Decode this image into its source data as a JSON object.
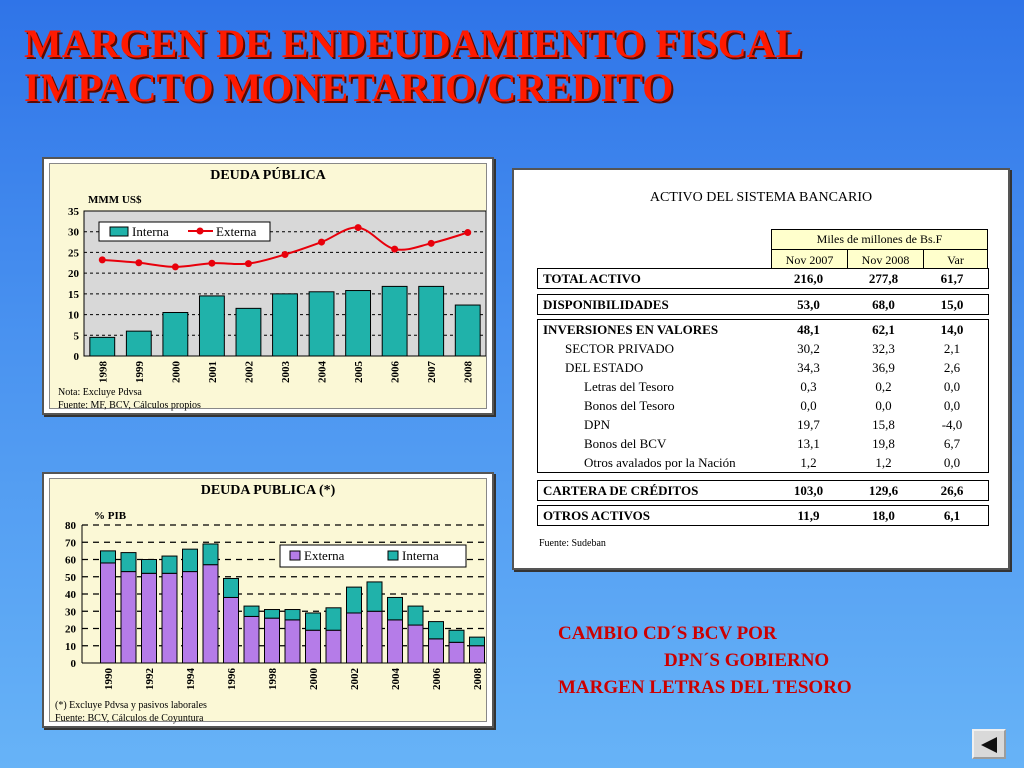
{
  "title_lines": [
    "MARGEN DE ENDEUDAMIENTO FISCAL",
    "IMPACTO MONETARIO/CREDITO"
  ],
  "chart1": {
    "title": "DEUDA PÚBLICA",
    "ylabel": "MMM US$",
    "notes": [
      "Nota: Excluye Pdvsa",
      "Fuente: MF, BCV, Cálculos propios"
    ]
  },
  "chart2": {
    "title": "DEUDA PUBLICA (*)",
    "ylabel": "% PIB",
    "notes": [
      "(*) Excluye Pdvsa y pasivos laborales",
      "Fuente: BCV, Cálculos de Coyuntura"
    ]
  },
  "chart_data": [
    {
      "type": "bar",
      "title": "DEUDA PÚBLICA",
      "ylabel": "MMM US$",
      "ylim": [
        0,
        35
      ],
      "yticks": [
        0,
        5,
        10,
        15,
        20,
        25,
        30,
        35
      ],
      "categories": [
        "1998",
        "1999",
        "2000",
        "2001",
        "2002",
        "2003",
        "2004",
        "2005",
        "2006",
        "2007",
        "2008"
      ],
      "legend_position": "top-left",
      "grid": true,
      "series": [
        {
          "name": "Interna",
          "type": "bar",
          "color": "#20b2aa",
          "values": [
            4.5,
            6.0,
            10.5,
            14.5,
            11.5,
            15.0,
            15.5,
            15.8,
            16.8,
            16.8,
            12.3
          ]
        },
        {
          "name": "Externa",
          "type": "line",
          "color": "#e8000b",
          "values": [
            23.2,
            22.5,
            21.5,
            22.4,
            22.3,
            24.5,
            27.5,
            31.0,
            25.8,
            27.2,
            29.8
          ]
        }
      ]
    },
    {
      "type": "bar",
      "stacked": true,
      "title": "DEUDA PUBLICA (*)",
      "ylabel": "% PIB",
      "ylim": [
        0,
        80
      ],
      "yticks": [
        0,
        10,
        20,
        30,
        40,
        50,
        60,
        70,
        80
      ],
      "categories": [
        "1990",
        "1991",
        "1992",
        "1993",
        "1994",
        "1995",
        "1996",
        "1997",
        "1998",
        "1999",
        "2000",
        "2001",
        "2002",
        "2003",
        "2004",
        "2005",
        "2006",
        "2007",
        "2008"
      ],
      "tick_labels": [
        "1990",
        "",
        "1992",
        "",
        "1994",
        "",
        "1996",
        "",
        "1998",
        "",
        "2000",
        "",
        "2002",
        "",
        "2004",
        "",
        "2006",
        "",
        "2008"
      ],
      "legend_position": "top-right",
      "grid": true,
      "series": [
        {
          "name": "Externa",
          "color": "#b57ce8",
          "values": [
            58,
            53,
            52,
            52,
            53,
            57,
            38,
            27,
            26,
            25,
            19,
            19,
            29,
            30,
            25,
            22,
            14,
            12,
            10
          ]
        },
        {
          "name": "Interna",
          "color": "#20b2aa",
          "values": [
            7,
            11,
            8,
            10,
            13,
            12,
            11,
            6,
            5,
            6,
            10,
            13,
            15,
            17,
            13,
            11,
            10,
            7,
            5
          ]
        }
      ]
    }
  ],
  "table": {
    "title": "ACTIVO DEL SISTEMA BANCARIO",
    "units": "Miles de millones de Bs.F",
    "columns": [
      "Nov 2007",
      "Nov 2008",
      "Var"
    ],
    "groups": [
      {
        "rows": [
          {
            "label": "TOTAL ACTIVO",
            "values": [
              "216,0",
              "277,8",
              "61,7"
            ],
            "bold": true,
            "level": 0
          }
        ]
      },
      {
        "rows": [
          {
            "label": "DISPONIBILIDADES",
            "values": [
              "53,0",
              "68,0",
              "15,0"
            ],
            "bold": true,
            "level": 0
          }
        ]
      },
      {
        "rows": [
          {
            "label": "INVERSIONES EN VALORES",
            "values": [
              "48,1",
              "62,1",
              "14,0"
            ],
            "bold": true,
            "level": 0
          },
          {
            "label": "SECTOR PRIVADO",
            "values": [
              "30,2",
              "32,3",
              "2,1"
            ],
            "bold": false,
            "level": 1
          },
          {
            "label": "DEL ESTADO",
            "values": [
              "34,3",
              "36,9",
              "2,6"
            ],
            "bold": false,
            "level": 1
          },
          {
            "label": "Letras del Tesoro",
            "values": [
              "0,3",
              "0,2",
              "0,0"
            ],
            "bold": false,
            "level": 2
          },
          {
            "label": "Bonos del Tesoro",
            "values": [
              "0,0",
              "0,0",
              "0,0"
            ],
            "bold": false,
            "level": 2
          },
          {
            "label": "DPN",
            "values": [
              "19,7",
              "15,8",
              "-4,0"
            ],
            "bold": false,
            "level": 2
          },
          {
            "label": "Bonos del BCV",
            "values": [
              "13,1",
              "19,8",
              "6,7"
            ],
            "bold": false,
            "level": 2
          },
          {
            "label": "Otros avalados por la Nación",
            "values": [
              "1,2",
              "1,2",
              "0,0"
            ],
            "bold": false,
            "level": 2
          }
        ]
      },
      {
        "rows": [
          {
            "label": "CARTERA DE CRÉDITOS",
            "values": [
              "103,0",
              "129,6",
              "26,6"
            ],
            "bold": true,
            "level": 0
          }
        ]
      },
      {
        "rows": [
          {
            "label": "OTROS ACTIVOS",
            "values": [
              "11,9",
              "18,0",
              "6,1"
            ],
            "bold": true,
            "level": 0
          }
        ]
      }
    ],
    "source": "Fuente: Sudeban"
  },
  "bottom_text": {
    "line1": "CAMBIO CD´S BCV POR",
    "line2": "DPN´S GOBIERNO",
    "line3": "MARGEN LETRAS DEL TESORO"
  },
  "nav": {
    "icon": "back-arrow-icon"
  }
}
